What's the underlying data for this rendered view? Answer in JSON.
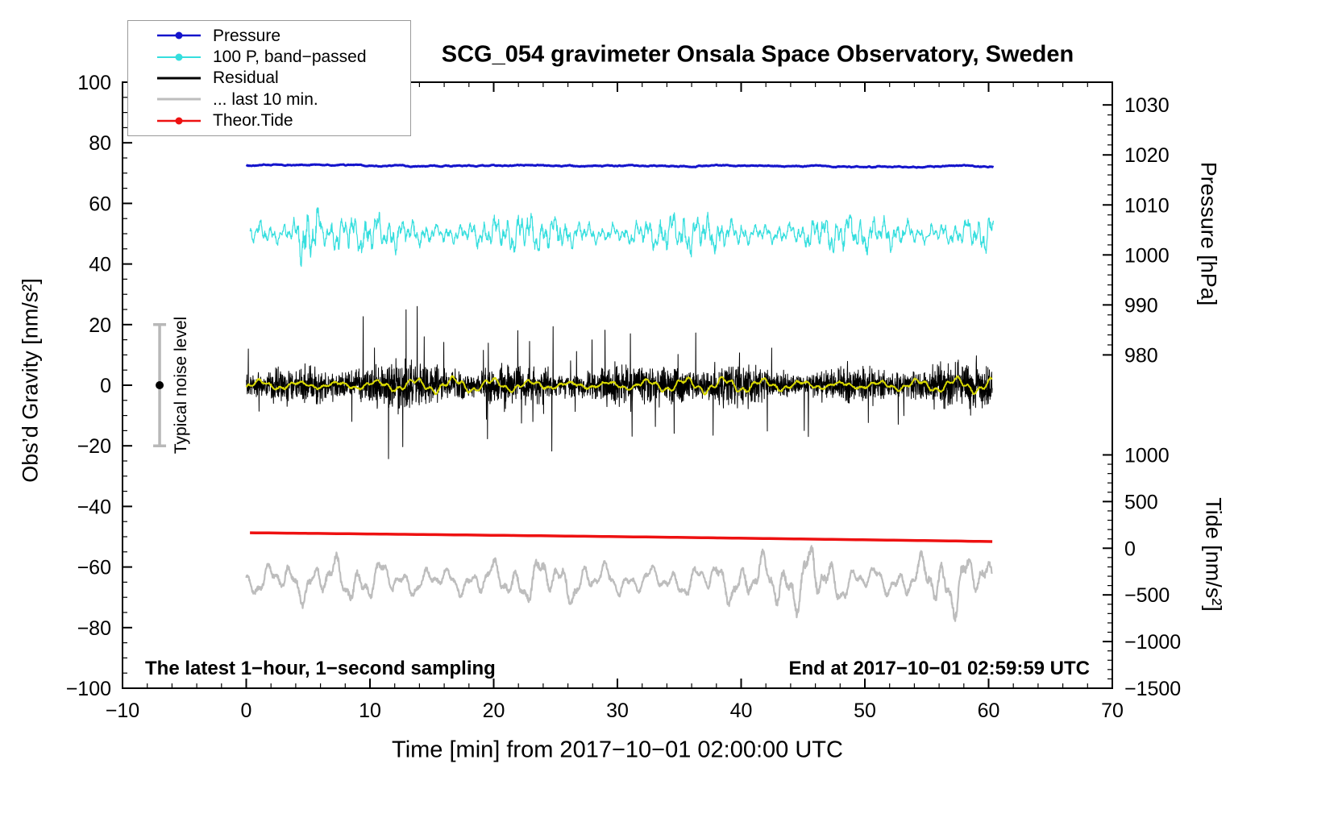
{
  "chart_data": {
    "type": "line",
    "title": "SCG_054 gravimeter Onsala Space Observatory, Sweden",
    "xlabel": "Time [min] from 2017−10−01 02:00:00 UTC",
    "x_axis": {
      "min": -10,
      "max": 70,
      "minor_step": 2,
      "tick_values": [
        -10,
        0,
        10,
        20,
        30,
        40,
        50,
        60,
        70
      ],
      "tick_labels": [
        "−10",
        "0",
        "10",
        "20",
        "30",
        "40",
        "50",
        "60",
        "70"
      ]
    },
    "y_axis_left": {
      "label": "Obs’d Gravity [nm/s²]",
      "min": -100,
      "max": 100,
      "minor_step": 5,
      "tick_values": [
        100,
        80,
        60,
        40,
        20,
        0,
        -20,
        -40,
        -60,
        -80,
        -100
      ],
      "tick_labels": [
        "100",
        "80",
        "60",
        "40",
        "20",
        "0",
        "−20",
        "−40",
        "−60",
        "−80",
        "−100"
      ]
    },
    "y_axis_pressure": {
      "label": "Pressure [hPa]",
      "tick_values": [
        1030,
        1020,
        1010,
        1000,
        990,
        980
      ],
      "tick_labels": [
        "1030",
        "1020",
        "1010",
        "1000",
        "990",
        "980"
      ],
      "minor_step": 2,
      "value_range": [
        980,
        1030
      ],
      "gravity_range": [
        10,
        92.5
      ]
    },
    "y_axis_tide": {
      "label": "Tide [nm/s²]",
      "tick_values": [
        1000,
        500,
        0,
        -500,
        -1000,
        -1500
      ],
      "tick_labels": [
        "1000",
        "500",
        "0",
        "−500",
        "−1000",
        "−1500"
      ],
      "minor_step": 100,
      "value_range": [
        -1500,
        1000
      ],
      "gravity_range": [
        -100,
        -23
      ]
    },
    "legend": [
      {
        "id": "pressure",
        "label": "Pressure",
        "color": "#1414cc",
        "marker": true,
        "line_width": 2.5
      },
      {
        "id": "bandpassed",
        "label": "100 P, band−passed",
        "color": "#35dede",
        "marker": true,
        "line_width": 2
      },
      {
        "id": "residual",
        "label": "Residual",
        "color": "#000000",
        "marker": false,
        "line_width": 3
      },
      {
        "id": "last10min",
        "label": "... last 10 min.",
        "color": "#bdbdbd",
        "marker": false,
        "line_width": 3
      },
      {
        "id": "theortide",
        "label": "Theor.Tide",
        "color": "#ee1111",
        "marker": true,
        "line_width": 2.5
      }
    ],
    "series": [
      {
        "id": "residual",
        "name": "Residual",
        "kind": "noise",
        "color": "#000000",
        "width": 1,
        "x_start": 0,
        "x_end": 60.3,
        "gravity_mean": 0,
        "typical_range": [
          -12,
          12
        ],
        "spike_range": [
          -25,
          25
        ],
        "sampling": "1 s"
      },
      {
        "id": "residual-smoothed",
        "name": "Residual smoothed",
        "kind": "smooth",
        "color": "#d8d800",
        "width": 2,
        "x_start": 0,
        "x_end": 60.3,
        "gravity_mean": 0,
        "amplitude": 3
      },
      {
        "id": "bandpassed",
        "name": "100 P, band−passed",
        "kind": "bandpass",
        "color": "#35dede",
        "width": 1.2,
        "x_start": 0.3,
        "x_end": 60.4,
        "gravity_mean": 50,
        "typical_range": [
          42,
          58
        ],
        "extreme_range": [
          30,
          72
        ],
        "spike_center": 5
      },
      {
        "id": "pressure",
        "name": "Pressure",
        "kind": "pressure",
        "color": "#1414cc",
        "width": 3,
        "x_start": 0,
        "x_end": 60.4,
        "gravity_mean": 72.6,
        "trend_per_min": -0.007,
        "value_hPa": 1017.5
      },
      {
        "id": "theortide",
        "name": "Theor.Tide",
        "kind": "trend",
        "color": "#ee1111",
        "width": 3.5,
        "x_start": 0.3,
        "x_end": 60.5,
        "start_gravity": -48.7,
        "end_gravity": -51.6,
        "start_tide_nms2": 145,
        "end_tide_nms2": 50
      },
      {
        "id": "last10min",
        "name": "... last 10 min.",
        "kind": "osc",
        "color": "#bdbdbd",
        "width": 2.2,
        "x_start": 0,
        "x_end": 60.3,
        "gravity_mean": -64.5,
        "typical_range": [
          -75,
          -48
        ]
      }
    ],
    "noise_marker": {
      "x": -7,
      "center_gravity": 0,
      "half_range": 20,
      "label": "Typical noise level",
      "bar_color": "#b8b8b8",
      "dot_color": "#000000"
    },
    "annotations": [
      {
        "id": "sampling",
        "text": "The latest 1−hour, 1−second sampling"
      },
      {
        "id": "end-time",
        "text": "End at 2017−10−01 02:59:59 UTC"
      }
    ]
  }
}
